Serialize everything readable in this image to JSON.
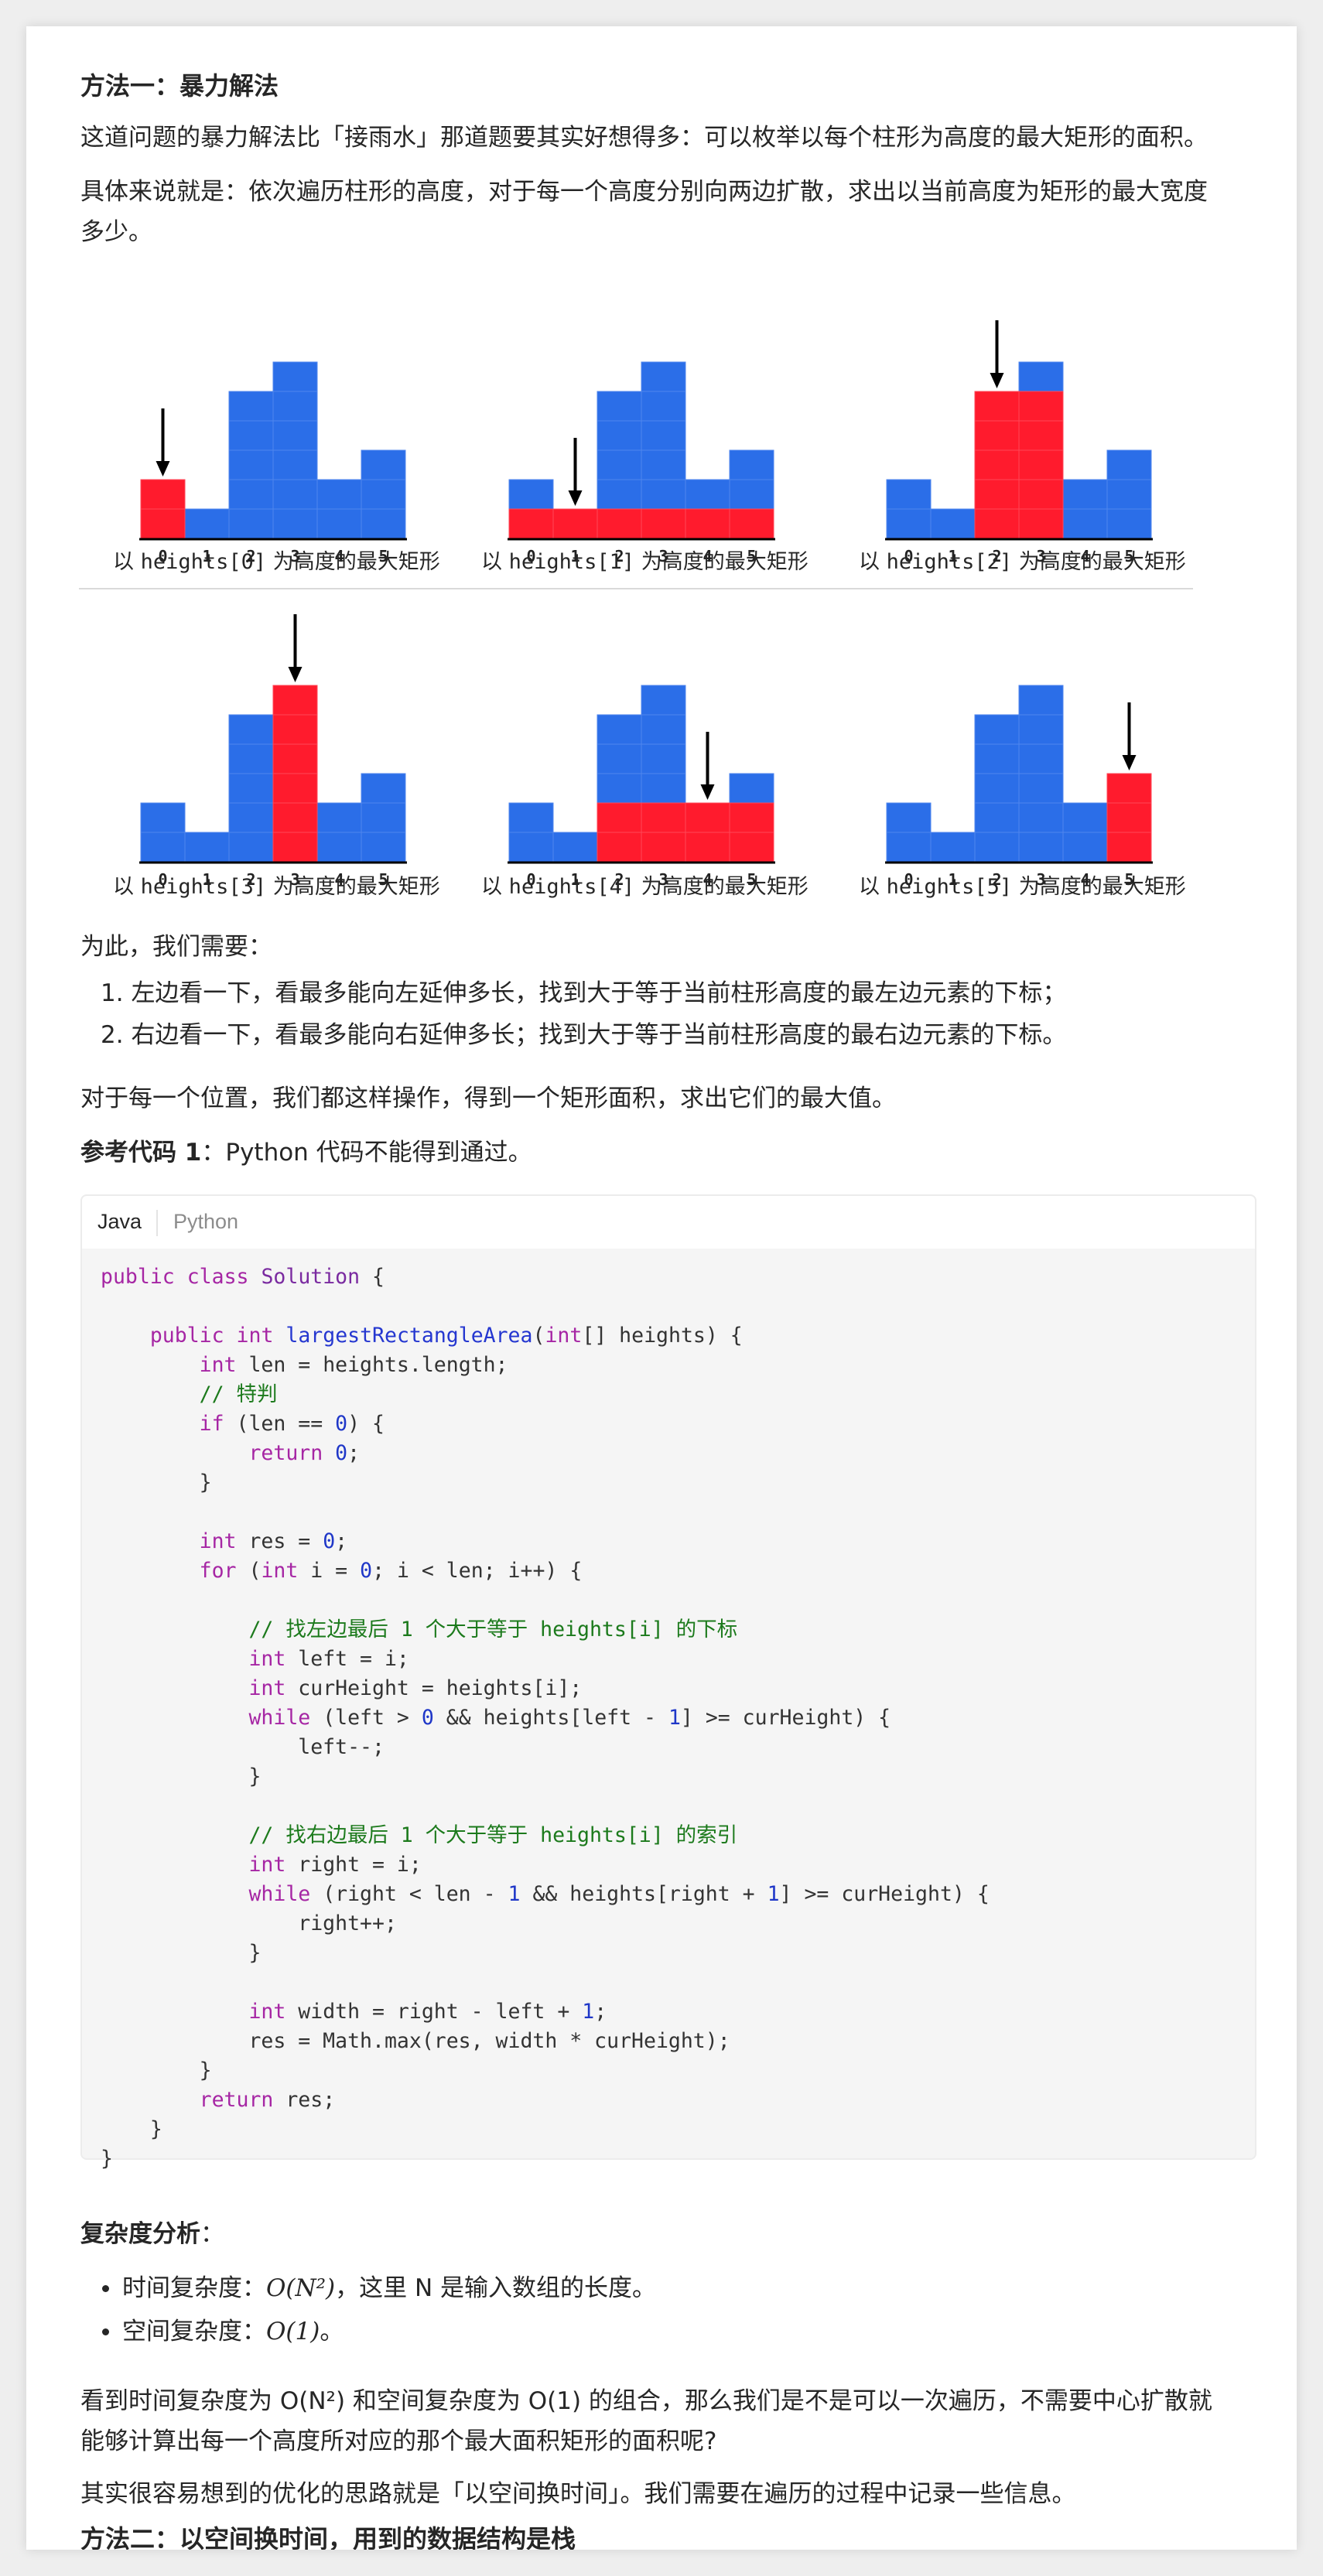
{
  "section1": {
    "title": "方法一：暴力解法",
    "intro": "这道问题的暴力解法比「接雨水」那道题要其实好想得多：可以枚举以每个柱形为高度的最大矩形的面积。",
    "detail_line1": "具体来说就是：依次遍历柱形的高度，对于每一个高度分别向两边扩散，求出以当前高度为矩形的最大宽度",
    "detail_line2": "多少。"
  },
  "figures": {
    "tick_labels": [
      "0",
      "1",
      "2",
      "3",
      "4",
      "5"
    ],
    "heights": [
      2,
      1,
      5,
      6,
      2,
      3
    ],
    "colors": {
      "bar": "#2b6ee8",
      "highlight": "#ff1b2d",
      "arrow": "#000000"
    },
    "panels": [
      {
        "highlight_index": 0,
        "range": [
          0,
          0
        ],
        "caption_pre": "以 ",
        "caption_code": "heights[0]",
        "caption_post": " 为高度的最大矩形"
      },
      {
        "highlight_index": 1,
        "range": [
          0,
          5
        ],
        "caption_pre": "以 ",
        "caption_code": "heights[1]",
        "caption_post": " 为高度的最大矩形"
      },
      {
        "highlight_index": 2,
        "range": [
          2,
          3
        ],
        "caption_pre": "以 ",
        "caption_code": "heights[2]",
        "caption_post": " 为高度的最大矩形"
      },
      {
        "highlight_index": 3,
        "range": [
          3,
          3
        ],
        "caption_pre": "以 ",
        "caption_code": "heights[3]",
        "caption_post": " 为高度的最大矩形"
      },
      {
        "highlight_index": 4,
        "range": [
          2,
          5
        ],
        "caption_pre": "以 ",
        "caption_code": "heights[4]",
        "caption_post": " 为高度的最大矩形"
      },
      {
        "highlight_index": 5,
        "range": [
          5,
          5
        ],
        "caption_pre": "以 ",
        "caption_code": "heights[5]",
        "caption_post": " 为高度的最大矩形"
      }
    ]
  },
  "steps": {
    "intro": "为此，我们需要：",
    "items": [
      "左边看一下，看最多能向左延伸多长，找到大于等于当前柱形高度的最左边元素的下标；",
      "右边看一下，看最多能向右延伸多长；找到大于等于当前柱形高度的最右边元素的下标。"
    ],
    "after": "对于每一个位置，我们都这样操作，得到一个矩形面积，求出它们的最大值。"
  },
  "ref_code": {
    "label": "参考代码 1",
    "note": "：Python 代码不能得到通过。"
  },
  "code_tabs": [
    "Java",
    "Python"
  ],
  "code_lines": [
    "public class Solution {",
    "",
    "    public int largestRectangleArea(int[] heights) {",
    "        int len = heights.length;",
    "        // 特判",
    "        if (len == 0) {",
    "            return 0;",
    "        }",
    "",
    "        int res = 0;",
    "        for (int i = 0; i < len; i++) {",
    "",
    "            // 找左边最后 1 个大于等于 heights[i] 的下标",
    "            int left = i;",
    "            int curHeight = heights[i];",
    "            while (left > 0 && heights[left - 1] >= curHeight) {",
    "                left--;",
    "            }",
    "",
    "            // 找右边最后 1 个大于等于 heights[i] 的索引",
    "            int right = i;",
    "            while (right < len - 1 && heights[right + 1] >= curHeight) {",
    "                right++;",
    "            }",
    "",
    "            int width = right - left + 1;",
    "            res = Math.max(res, width * curHeight);",
    "        }",
    "        return res;",
    "    }",
    "}"
  ],
  "complexity": {
    "title": "复杂度分析",
    "title_colon": "：",
    "time_label": "时间复杂度：",
    "time_expr": "O(N²)",
    "time_note": "，这里 N 是输入数组的长度。",
    "space_label": "空间复杂度：",
    "space_expr": "O(1)",
    "space_end": "。"
  },
  "conclusion": {
    "line1": "看到时间复杂度为 O(N²) 和空间复杂度为 O(1) 的组合，那么我们是不是可以一次遍历，不需要中心扩散就",
    "line2": "能够计算出每一个高度所对应的那个最大面积矩形的面积呢?",
    "line3": "其实很容易想到的优化的思路就是「以空间换时间」。我们需要在遍历的过程中记录一些信息。"
  },
  "next_section_title": "方法二：以空间换时间，用到的数据结构是栈"
}
